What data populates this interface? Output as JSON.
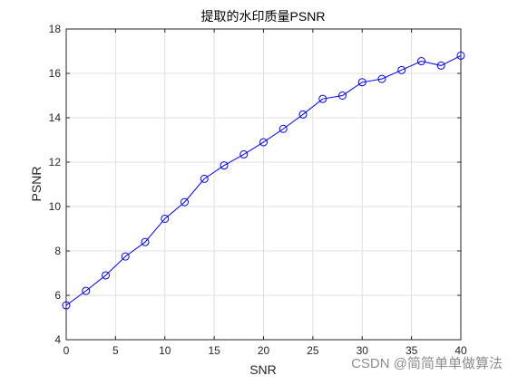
{
  "chart_data": {
    "type": "line",
    "title": "提取的水印质量PSNR",
    "xlabel": "SNR",
    "ylabel": "PSNR",
    "xlim": [
      0,
      40
    ],
    "ylim": [
      4,
      18
    ],
    "xticks": [
      0,
      5,
      10,
      15,
      20,
      25,
      30,
      35,
      40
    ],
    "yticks": [
      4,
      6,
      8,
      10,
      12,
      14,
      16,
      18
    ],
    "grid": true,
    "series": [
      {
        "marker": "circle",
        "color": "#0000ff",
        "x": [
          0,
          2,
          4,
          6,
          8,
          10,
          12,
          14,
          16,
          18,
          20,
          22,
          24,
          26,
          28,
          30,
          32,
          34,
          36,
          38,
          40
        ],
        "y": [
          5.55,
          6.2,
          6.9,
          7.75,
          8.4,
          9.45,
          10.2,
          11.25,
          11.85,
          12.35,
          12.9,
          13.5,
          14.15,
          14.85,
          15.0,
          15.6,
          15.75,
          16.15,
          16.55,
          16.35,
          16.8
        ]
      }
    ]
  },
  "watermark": "CSDN @简简单单做算法"
}
